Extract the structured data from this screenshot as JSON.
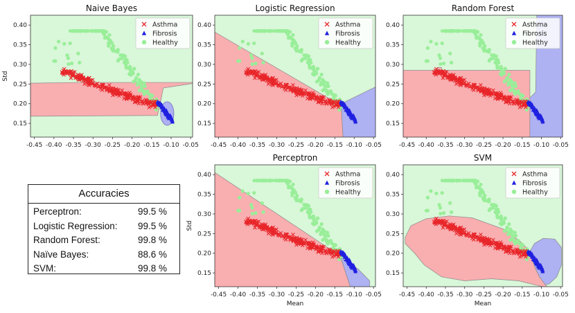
{
  "chart_data": [
    {
      "type": "scatter",
      "title": "Naive Bayes",
      "ylabel": "Std",
      "xlabel": "",
      "xlim": [
        -0.46,
        -0.045
      ],
      "ylim": [
        0.115,
        0.425
      ],
      "xticks": [
        "-0.45",
        "-0.40",
        "-0.35",
        "-0.30",
        "-0.25",
        "-0.20",
        "-0.15",
        "-0.10",
        "-0.05"
      ],
      "yticks": [
        "0.15",
        "0.20",
        "0.25",
        "0.30",
        "0.35",
        "0.40"
      ],
      "legend": [
        "Asthma",
        "Fibrosis",
        "Healthy"
      ],
      "legend_position": "top-right",
      "regions": "naive_bayes"
    },
    {
      "type": "scatter",
      "title": "Logistic Regression",
      "ylabel": "",
      "xlabel": "",
      "xlim": [
        -0.46,
        -0.045
      ],
      "ylim": [
        0.115,
        0.425
      ],
      "xticks": [
        "-0.45",
        "-0.40",
        "-0.35",
        "-0.30",
        "-0.25",
        "-0.20",
        "-0.15",
        "-0.10",
        "-0.05"
      ],
      "yticks": [
        "0.15",
        "0.20",
        "0.25",
        "0.30",
        "0.35",
        "0.40"
      ],
      "legend": [
        "Asthma",
        "Fibrosis",
        "Healthy"
      ],
      "legend_position": "top-right",
      "regions": "logistic"
    },
    {
      "type": "scatter",
      "title": "Random Forest",
      "ylabel": "",
      "xlabel": "",
      "xlim": [
        -0.46,
        -0.045
      ],
      "ylim": [
        0.115,
        0.425
      ],
      "xticks": [
        "-0.45",
        "-0.40",
        "-0.35",
        "-0.30",
        "-0.25",
        "-0.20",
        "-0.15",
        "-0.10",
        "-0.05"
      ],
      "yticks": [
        "0.15",
        "0.20",
        "0.25",
        "0.30",
        "0.35",
        "0.40"
      ],
      "legend": [
        "Asthma",
        "Fibrosis",
        "Healthy"
      ],
      "legend_position": "top-right",
      "regions": "random_forest"
    },
    {
      "type": "scatter",
      "title": "Perceptron",
      "ylabel": "Std",
      "xlabel": "Mean",
      "xlim": [
        -0.46,
        -0.045
      ],
      "ylim": [
        0.115,
        0.425
      ],
      "xticks": [
        "-0.45",
        "-0.40",
        "-0.35",
        "-0.30",
        "-0.25",
        "-0.20",
        "-0.15",
        "-0.10",
        "-0.05"
      ],
      "yticks": [
        "0.15",
        "0.20",
        "0.25",
        "0.30",
        "0.35",
        "0.40"
      ],
      "legend": [
        "Asthma",
        "Fibrosis",
        "Healthy"
      ],
      "legend_position": "top-right",
      "regions": "perceptron"
    },
    {
      "type": "scatter",
      "title": "SVM",
      "ylabel": "",
      "xlabel": "Mean",
      "xlim": [
        -0.46,
        -0.045
      ],
      "ylim": [
        0.115,
        0.425
      ],
      "xticks": [
        "-0.45",
        "-0.40",
        "-0.35",
        "-0.30",
        "-0.25",
        "-0.20",
        "-0.15",
        "-0.10",
        "-0.05"
      ],
      "yticks": [
        "0.15",
        "0.20",
        "0.25",
        "0.30",
        "0.35",
        "0.40"
      ],
      "legend": [
        "Asthma",
        "Fibrosis",
        "Healthy"
      ],
      "legend_position": "top-right",
      "regions": "svm"
    }
  ],
  "classes": {
    "asthma": {
      "name": "Asthma",
      "marker": "x",
      "color": "#e8262a",
      "region_color": "#f9aeb0"
    },
    "fibrosis": {
      "name": "Fibrosis",
      "marker": "triangle",
      "color": "#2020e0",
      "region_color": "#aeb1f2"
    },
    "healthy": {
      "name": "Healthy",
      "marker": "circle",
      "color": "#99ee99",
      "region_color": "#d9f7d9"
    }
  },
  "accuracies": {
    "title": "Accuracies",
    "rows": [
      {
        "name": "Perceptron:",
        "value": "99.5 %"
      },
      {
        "name": "Logistic Regression:",
        "value": "99.5 %"
      },
      {
        "name": "Random Forest:",
        "value": "99.8 %"
      },
      {
        "name": "Naïve Bayes:",
        "value": "88.6 %"
      },
      {
        "name": "SVM:",
        "value": "99.8 %"
      }
    ]
  }
}
